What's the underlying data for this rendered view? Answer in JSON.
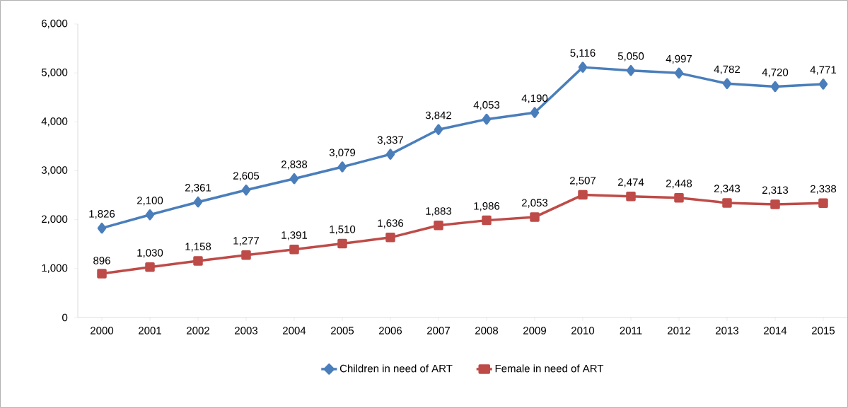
{
  "chart_data": {
    "type": "line",
    "categories": [
      "2000",
      "2001",
      "2002",
      "2003",
      "2004",
      "2005",
      "2006",
      "2007",
      "2008",
      "2009",
      "2010",
      "2011",
      "2012",
      "2013",
      "2014",
      "2015"
    ],
    "ylim": [
      0,
      6000
    ],
    "yticks": [
      {
        "value": 0,
        "label": "0"
      },
      {
        "value": 1000,
        "label": "1,000"
      },
      {
        "value": 2000,
        "label": "2,000"
      },
      {
        "value": 3000,
        "label": "3,000"
      },
      {
        "value": 4000,
        "label": "4,000"
      },
      {
        "value": 5000,
        "label": "5,000"
      },
      {
        "value": 6000,
        "label": "6,000"
      }
    ],
    "legend": "bottom",
    "grid": false,
    "series": [
      {
        "name": "Children in need of ART",
        "color": "#4a7ebb",
        "marker": "diamond",
        "values": [
          1826,
          2100,
          2361,
          2605,
          2838,
          3079,
          3337,
          3842,
          4053,
          4190,
          5116,
          5050,
          4997,
          4782,
          4720,
          4771
        ],
        "value_labels": [
          "1,826",
          "2,100",
          "2,361",
          "2,605",
          "2,838",
          "3,079",
          "3,337",
          "3,842",
          "4,053",
          "4,190",
          "5,116",
          "5,050",
          "4,997",
          "4,782",
          "4,720",
          "4,771"
        ]
      },
      {
        "name": "Female in need of ART",
        "color": "#be4b48",
        "marker": "square",
        "values": [
          896,
          1030,
          1158,
          1277,
          1391,
          1510,
          1636,
          1883,
          1986,
          2053,
          2507,
          2474,
          2448,
          2343,
          2313,
          2338
        ],
        "value_labels": [
          "896",
          "1,030",
          "1,158",
          "1,277",
          "1,391",
          "1,510",
          "1,636",
          "1,883",
          "1,986",
          "2,053",
          "2,507",
          "2,474",
          "2,448",
          "2,343",
          "2,313",
          "2,338"
        ]
      }
    ]
  }
}
